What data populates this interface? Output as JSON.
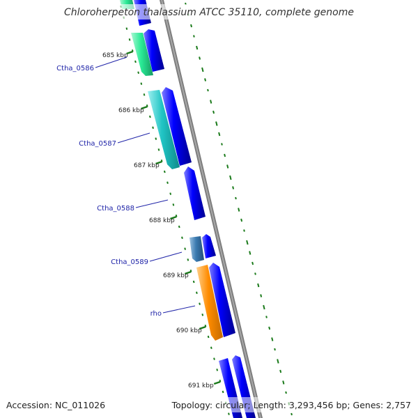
{
  "title": "Chloroherpeton thalassium ATCC 35110, complete genome",
  "footer": {
    "accession": "Accession: NC_011026",
    "summary": "Topology: circular; Length: 3,293,456 bp; Genes: 2,757"
  },
  "colors": {
    "forward_cds": "#0000ff",
    "backbone": "#808080",
    "gc_skew_dash": "#1a7a1a",
    "gene_label": "#1f24a8",
    "Ctha_0586": "#2aeb96",
    "Ctha_0587": "#20c4c4",
    "Ctha_0589": "#3a7ab0",
    "rho": "#ff8c00"
  },
  "ruler_ticks": [
    {
      "label": "685 kbp"
    },
    {
      "label": "686 kbp"
    },
    {
      "label": "687 kbp"
    },
    {
      "label": "688 kbp"
    },
    {
      "label": "689 kbp"
    },
    {
      "label": "690 kbp"
    },
    {
      "label": "691 kbp"
    }
  ],
  "gene_labels": [
    {
      "label": "Ctha_0586"
    },
    {
      "label": "Ctha_0587"
    },
    {
      "label": "Ctha_0588"
    },
    {
      "label": "Ctha_0589"
    },
    {
      "label": "rho"
    }
  ]
}
